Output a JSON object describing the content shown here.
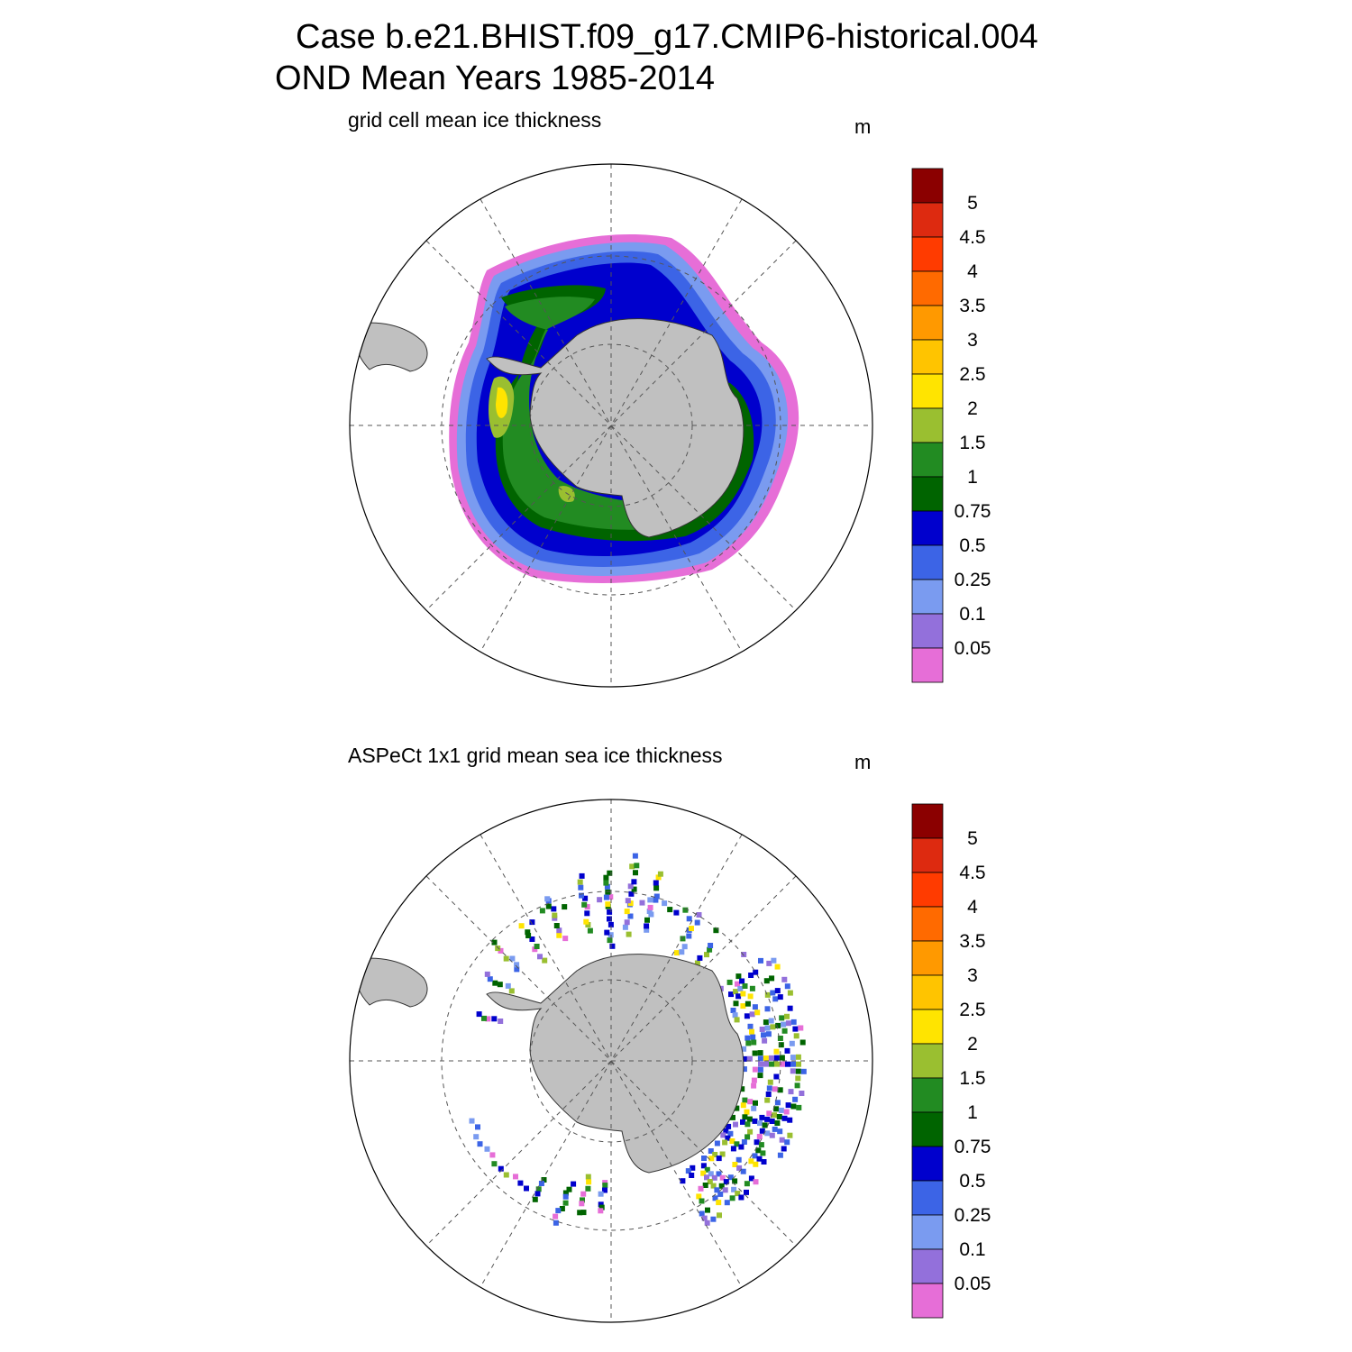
{
  "title": {
    "line1": "Case b.e21.BHIST.f09_g17.CMIP6-historical.004",
    "line2": "OND Mean   Years 1985-2014"
  },
  "colorbar": {
    "tick_labels": [
      "5",
      "4.5",
      "4",
      "3.5",
      "3",
      "2.5",
      "2",
      "1.5",
      "1",
      "0.75",
      "0.5",
      "0.25",
      "0.1",
      "0.05"
    ],
    "colors_top_to_bottom": [
      "#8B0000",
      "#DD2A10",
      "#FF3B00",
      "#FF6A00",
      "#FF9900",
      "#FFC400",
      "#FFE400",
      "#9ABF30",
      "#228B22",
      "#006400",
      "#0000CD",
      "#3C64E6",
      "#7A9BF0",
      "#9370DB",
      "#E66ED7"
    ]
  },
  "panels": [
    {
      "label": "grid cell mean ice thickness",
      "unit": "m"
    },
    {
      "label": "ASPeCt 1x1 grid mean sea ice thickness",
      "unit": "m"
    }
  ],
  "chart_data": {
    "type": "heatmap",
    "projection": "south polar stereographic",
    "levels": [
      0.05,
      0.1,
      0.25,
      0.5,
      0.75,
      1,
      1.5,
      2,
      2.5,
      3,
      3.5,
      4,
      4.5,
      5
    ],
    "units": "m",
    "land_color": "#C0C0C0",
    "graticule": "dashed",
    "panels": [
      {
        "name": "grid cell mean ice thickness",
        "field": "continuous ice field"
      },
      {
        "name": "ASPeCt 1x1 grid mean sea ice thickness",
        "field": "sparse ship-track observations"
      }
    ]
  }
}
